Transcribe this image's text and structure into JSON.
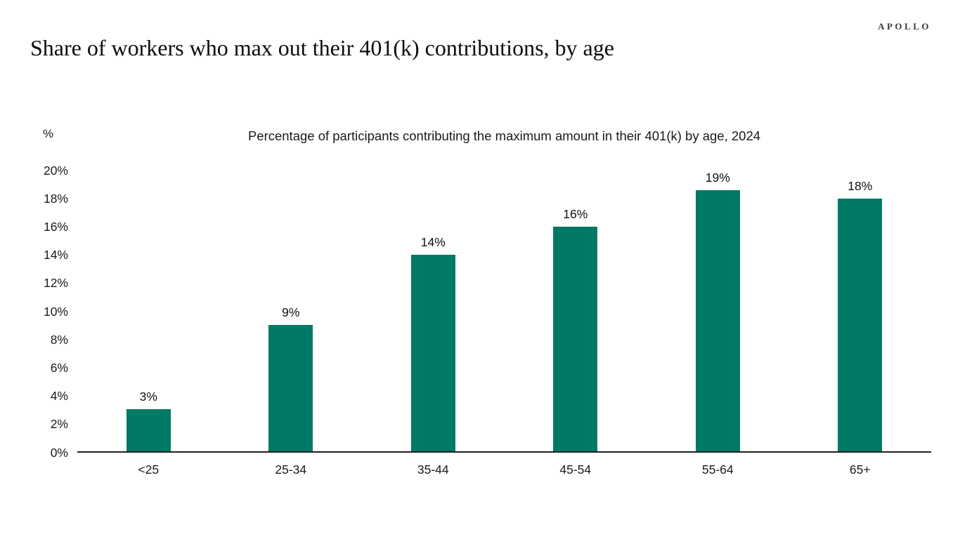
{
  "page": {
    "logo": "APOLLO",
    "title": "Share of workers who max out their 401(k) contributions, by age"
  },
  "chart_data": {
    "type": "bar",
    "title": "Percentage of participants contributing the maximum amount in their 401(k) by age, 2024",
    "unit_label": "%",
    "categories": [
      "<25",
      "25-34",
      "35-44",
      "45-54",
      "55-64",
      "65+"
    ],
    "values": [
      3,
      9,
      14,
      16,
      19,
      18
    ],
    "value_labels": [
      "3%",
      "9%",
      "14%",
      "16%",
      "19%",
      "18%"
    ],
    "yticks": [
      {
        "label": "20%",
        "value": 20
      },
      {
        "label": "18%",
        "value": 18
      },
      {
        "label": "16%",
        "value": 16
      },
      {
        "label": "14%",
        "value": 14
      },
      {
        "label": "12%",
        "value": 12
      },
      {
        "label": "10%",
        "value": 10
      },
      {
        "label": "8%",
        "value": 8
      },
      {
        "label": "6%",
        "value": 6
      },
      {
        "label": "4%",
        "value": 4
      },
      {
        "label": "2%",
        "value": 2
      },
      {
        "label": "0%",
        "value": 0
      }
    ],
    "ylim": [
      0,
      20
    ],
    "bar_color": "#007a64",
    "axis_line_color": "#1f1f1f",
    "grid": false,
    "legend": "none",
    "xlabel": "",
    "ylabel": "%"
  }
}
